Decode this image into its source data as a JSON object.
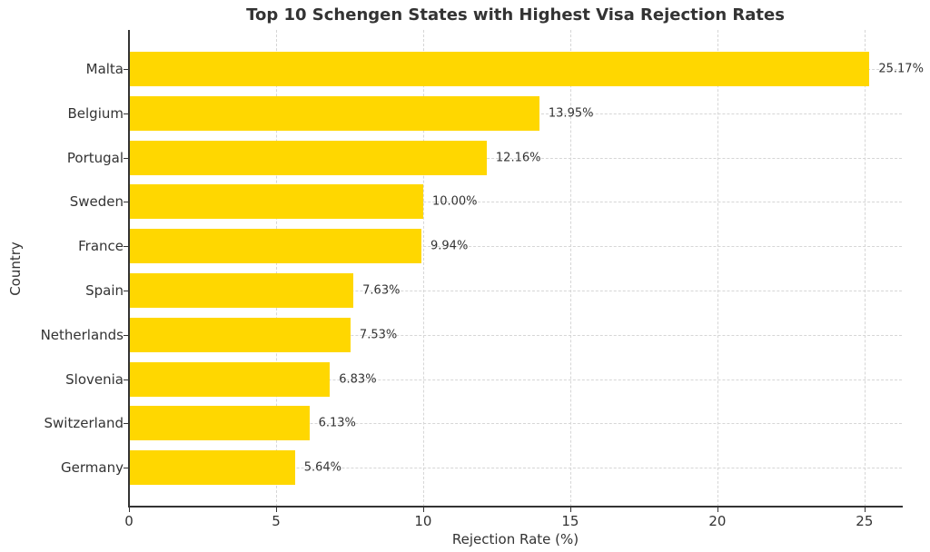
{
  "chart_data": {
    "type": "bar",
    "orientation": "horizontal",
    "title": "Top 10 Schengen States with Highest Visa Rejection Rates",
    "xlabel": "Rejection Rate (%)",
    "ylabel": "Country",
    "categories": [
      "Malta",
      "Belgium",
      "Portugal",
      "Sweden",
      "France",
      "Spain",
      "Netherlands",
      "Slovenia",
      "Switzerland",
      "Germany"
    ],
    "values": [
      25.17,
      13.95,
      12.16,
      10.0,
      9.94,
      7.63,
      7.53,
      6.83,
      6.13,
      5.64
    ],
    "value_labels": [
      "25.17%",
      "13.95%",
      "12.16%",
      "10.00%",
      "9.94%",
      "7.63%",
      "7.53%",
      "6.83%",
      "6.13%",
      "5.64%"
    ],
    "xticks": [
      0,
      5,
      10,
      15,
      20,
      25
    ],
    "xlim": [
      0,
      26.27
    ],
    "grid": true,
    "bar_color": "#FFD700",
    "legend": null
  }
}
